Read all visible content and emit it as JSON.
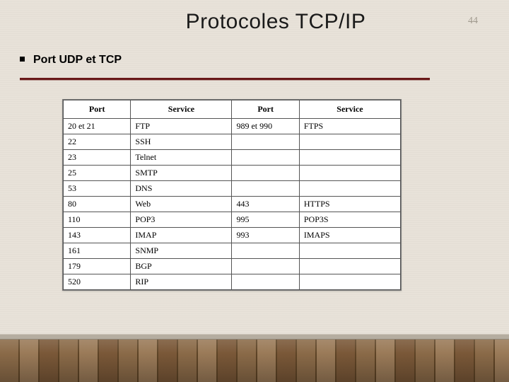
{
  "page_number": "44",
  "title": "Protocoles TCP/IP",
  "subtitle": "Port UDP et TCP",
  "colors": {
    "wall": "#e8e2d9",
    "floor_base": "#8a6a48",
    "rule": "#6a1a1a",
    "border": "#555555",
    "text": "#000000",
    "page_num_color": "#a09a8e"
  },
  "table": {
    "type": "table",
    "columns": [
      "Port",
      "Service",
      "Port",
      "Service"
    ],
    "rows": [
      [
        "20 et 21",
        "FTP",
        "989 et 990",
        "FTPS"
      ],
      [
        "22",
        "SSH",
        "",
        ""
      ],
      [
        "23",
        "Telnet",
        "",
        ""
      ],
      [
        "25",
        "SMTP",
        "",
        ""
      ],
      [
        "53",
        "DNS",
        "",
        ""
      ],
      [
        "80",
        "Web",
        "443",
        "HTTPS"
      ],
      [
        "110",
        "POP3",
        "995",
        "POP3S"
      ],
      [
        "143",
        "IMAP",
        "993",
        "IMAPS"
      ],
      [
        "161",
        "SNMP",
        "",
        ""
      ],
      [
        "179",
        "BGP",
        "",
        ""
      ],
      [
        "520",
        "RIP",
        "",
        ""
      ]
    ],
    "col_widths_pct": [
      20,
      30,
      20,
      30
    ],
    "header_fontweight": "bold",
    "font_family": "Times New Roman",
    "font_size_pt": 9,
    "border_color": "#555555",
    "background_color": "#ffffff"
  }
}
